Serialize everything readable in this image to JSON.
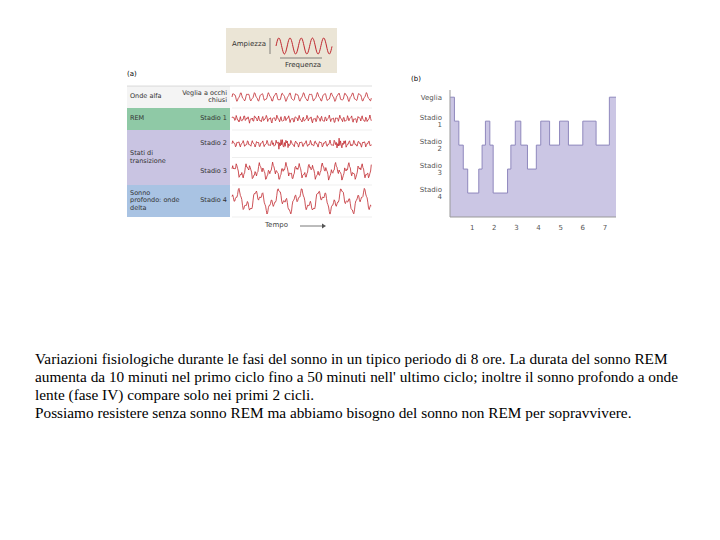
{
  "legend_box": {
    "amplitude": "Ampiezza",
    "frequency": "Frequenza"
  },
  "panel_a": {
    "label": "(a)",
    "groups": [
      {
        "name": "Onde alfa",
        "stages": [
          "Veglia a occhi chiusi"
        ]
      },
      {
        "name": "REM",
        "stages": [
          "Stadio 1"
        ]
      },
      {
        "name": "Stati di transizione",
        "stages": [
          "Stadio 2",
          "Stadio 3"
        ]
      },
      {
        "name": "Sonno profondo: onde delta",
        "stages": [
          "Stadio 4"
        ]
      }
    ],
    "time_label": "Tempo"
  },
  "chart_data": {
    "type": "area",
    "title": "(b)",
    "line_style": "step",
    "color": "#cbc6e4",
    "x": [
      0,
      0.2,
      0.4,
      0.6,
      0.8,
      1.3,
      1.45,
      1.6,
      1.8,
      1.95,
      2.6,
      2.75,
      2.95,
      3.2,
      3.5,
      3.9,
      4.1,
      4.5,
      4.95,
      5.35,
      6.0,
      6.6,
      7.2,
      7.5
    ],
    "values": [
      5,
      4,
      3,
      2,
      1,
      2,
      3,
      4,
      3,
      1,
      2,
      3,
      4,
      3,
      2,
      3,
      4,
      3,
      4,
      3,
      4,
      3,
      5,
      5
    ],
    "xlim": [
      0,
      7.5
    ],
    "xticks": [
      1,
      2,
      3,
      4,
      5,
      6,
      7
    ],
    "ylim": [
      0,
      5.3
    ],
    "yticks": [
      {
        "value": 5,
        "label": "Veglia"
      },
      {
        "value": 4,
        "label": "Stadio 1"
      },
      {
        "value": 3,
        "label": "Stadio 2"
      },
      {
        "value": 2,
        "label": "Stadio 3"
      },
      {
        "value": 1,
        "label": "Stadio 4"
      }
    ],
    "grid": false
  },
  "caption": [
    "Variazioni fisiologiche durante le fasi del sonno in un tipico periodo di 8 ore. La durata del sonno REM aumenta da 10 minuti nel primo ciclo fino a 50 minuti nell' ultimo ciclo; inoltre il sonno profondo a onde lente (fase IV) compare solo nei primi 2 cicli.",
    "Possiamo resistere senza sonno REM ma abbiamo bisogno del sonno non REM per sopravvivere."
  ]
}
